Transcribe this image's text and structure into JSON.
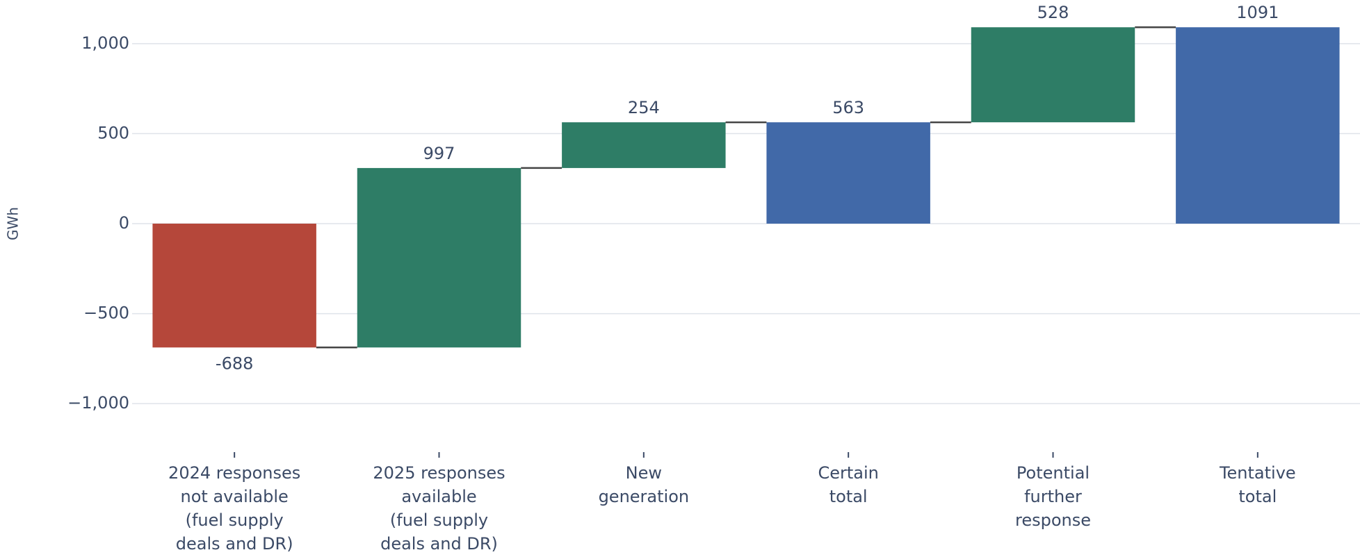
{
  "chart_data": {
    "type": "waterfall",
    "y_axis_label": "GWh",
    "categories": [
      "2024 responses\nnot available\n(fuel supply\ndeals and DR)",
      "2025 responses\navailable\n(fuel supply\ndeals and DR)",
      "New\ngeneration",
      "Certain\ntotal",
      "Potential\nfurther\nresponse",
      "Tentative\ntotal"
    ],
    "values": [
      -688,
      997,
      254,
      563,
      528,
      1091
    ],
    "measure": [
      "relative",
      "relative",
      "relative",
      "total",
      "relative",
      "total"
    ],
    "colors": {
      "increase": "#2e7d66",
      "decrease": "#b5473a",
      "total": "#4169a8"
    },
    "ylim": [
      -1200,
      1200
    ],
    "yticks": [
      {
        "value": -1000,
        "label": "−1,000"
      },
      {
        "value": -500,
        "label": "−500"
      },
      0,
      500,
      {
        "value": 1000,
        "label": "1,000"
      }
    ],
    "grid": true
  }
}
